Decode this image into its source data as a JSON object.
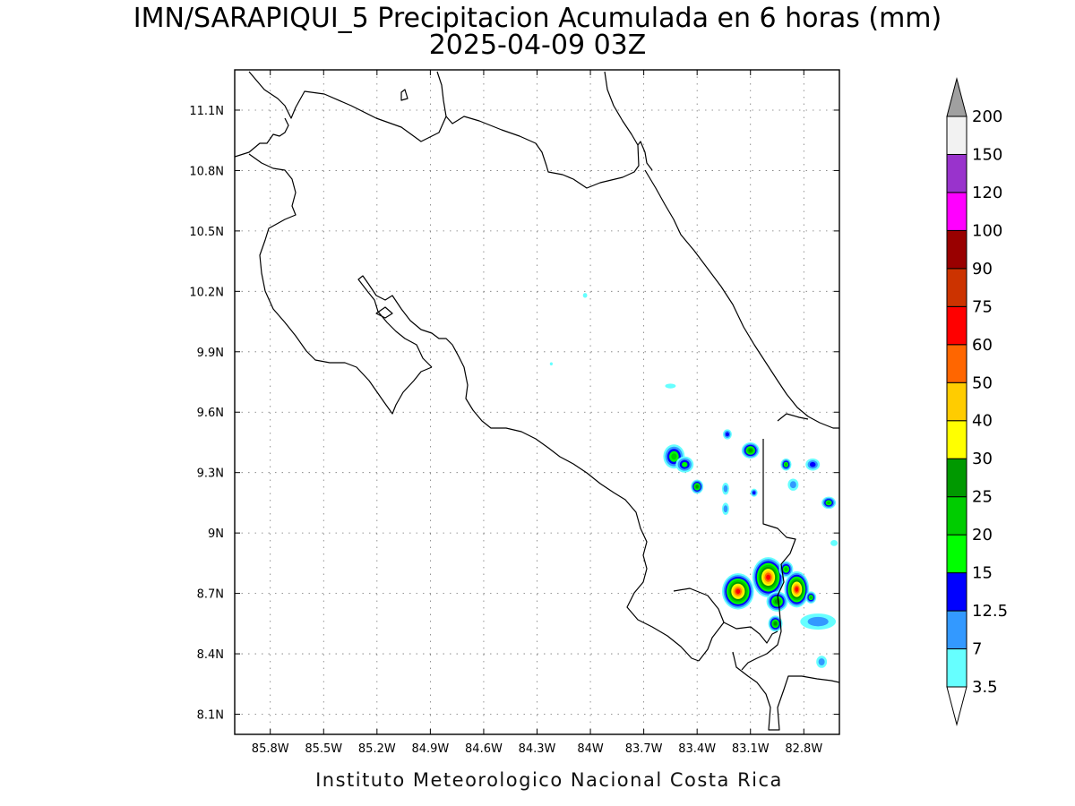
{
  "title": {
    "line1": "IMN/SARAPIQUI_5 Precipitacion Acumulada en 6 horas (mm)",
    "line2": "2025-04-09 03Z"
  },
  "footer": "Instituto Meteorologico Nacional Costa Rica",
  "axes": {
    "lon_range": [
      -86.0,
      -82.6
    ],
    "lat_range": [
      8.0,
      11.3
    ],
    "lon_ticks": [
      {
        "value": -85.8,
        "label": "85.8W"
      },
      {
        "value": -85.5,
        "label": "85.5W"
      },
      {
        "value": -85.2,
        "label": "85.2W"
      },
      {
        "value": -84.9,
        "label": "84.9W"
      },
      {
        "value": -84.6,
        "label": "84.6W"
      },
      {
        "value": -84.3,
        "label": "84.3W"
      },
      {
        "value": -84.0,
        "label": "84W"
      },
      {
        "value": -83.7,
        "label": "83.7W"
      },
      {
        "value": -83.4,
        "label": "83.4W"
      },
      {
        "value": -83.1,
        "label": "83.1W"
      },
      {
        "value": -82.8,
        "label": "82.8W"
      }
    ],
    "lat_ticks": [
      {
        "value": 11.1,
        "label": "11.1N"
      },
      {
        "value": 10.8,
        "label": "10.8N"
      },
      {
        "value": 10.5,
        "label": "10.5N"
      },
      {
        "value": 10.2,
        "label": "10.2N"
      },
      {
        "value": 9.9,
        "label": "9.9N"
      },
      {
        "value": 9.6,
        "label": "9.6N"
      },
      {
        "value": 9.3,
        "label": "9.3N"
      },
      {
        "value": 9.0,
        "label": "9N"
      },
      {
        "value": 8.7,
        "label": "8.7N"
      },
      {
        "value": 8.4,
        "label": "8.4N"
      },
      {
        "value": 8.1,
        "label": "8.1N"
      }
    ],
    "grid": true
  },
  "colorbar": {
    "labels": [
      "3.5",
      "7",
      "12.5",
      "15",
      "20",
      "25",
      "30",
      "40",
      "50",
      "60",
      "75",
      "90",
      "100",
      "120",
      "150",
      "200"
    ],
    "colors": [
      "#66ffff",
      "#3399ff",
      "#0000ff",
      "#00ff00",
      "#00cc00",
      "#009900",
      "#ffff00",
      "#ffcc00",
      "#ff6600",
      "#ff0000",
      "#cc3300",
      "#990000",
      "#ff00ff",
      "#9933cc",
      "#f2f2f2"
    ],
    "over_color": "#a0a0a0",
    "under_color": "#ffffff"
  },
  "precip_cells": [
    {
      "lon": -83.53,
      "lat": 9.38,
      "level": 4,
      "rx": 0.06,
      "ry": 0.06
    },
    {
      "lon": -83.47,
      "lat": 9.34,
      "level": 3,
      "rx": 0.05,
      "ry": 0.04
    },
    {
      "lon": -83.4,
      "lat": 9.23,
      "level": 5,
      "rx": 0.035,
      "ry": 0.035
    },
    {
      "lon": -83.23,
      "lat": 9.49,
      "level": 2,
      "rx": 0.025,
      "ry": 0.025
    },
    {
      "lon": -83.1,
      "lat": 9.41,
      "level": 5,
      "rx": 0.05,
      "ry": 0.04
    },
    {
      "lon": -83.24,
      "lat": 9.22,
      "level": 1,
      "rx": 0.02,
      "ry": 0.03
    },
    {
      "lon": -83.24,
      "lat": 9.12,
      "level": 1,
      "rx": 0.02,
      "ry": 0.03
    },
    {
      "lon": -83.08,
      "lat": 9.2,
      "level": 2,
      "rx": 0.02,
      "ry": 0.02
    },
    {
      "lon": -82.9,
      "lat": 9.34,
      "level": 4,
      "rx": 0.03,
      "ry": 0.03
    },
    {
      "lon": -82.75,
      "lat": 9.34,
      "level": 2,
      "rx": 0.04,
      "ry": 0.03
    },
    {
      "lon": -82.86,
      "lat": 9.24,
      "level": 1,
      "rx": 0.03,
      "ry": 0.03
    },
    {
      "lon": -82.66,
      "lat": 9.15,
      "level": 4,
      "rx": 0.04,
      "ry": 0.03
    },
    {
      "lon": -83.55,
      "lat": 9.73,
      "level": 0,
      "rx": 0.03,
      "ry": 0.012
    },
    {
      "lon": -84.03,
      "lat": 10.18,
      "level": 0,
      "rx": 0.012,
      "ry": 0.012
    },
    {
      "lon": -84.22,
      "lat": 9.84,
      "level": 0,
      "rx": 0.008,
      "ry": 0.008
    },
    {
      "lon": -83.17,
      "lat": 8.71,
      "level": 9,
      "rx": 0.09,
      "ry": 0.09
    },
    {
      "lon": -83.0,
      "lat": 8.78,
      "level": 9,
      "rx": 0.09,
      "ry": 0.1
    },
    {
      "lon": -82.84,
      "lat": 8.72,
      "level": 9,
      "rx": 0.07,
      "ry": 0.09
    },
    {
      "lon": -82.95,
      "lat": 8.66,
      "level": 5,
      "rx": 0.06,
      "ry": 0.05
    },
    {
      "lon": -82.96,
      "lat": 8.55,
      "level": 5,
      "rx": 0.04,
      "ry": 0.04
    },
    {
      "lon": -82.76,
      "lat": 8.68,
      "level": 4,
      "rx": 0.03,
      "ry": 0.03
    },
    {
      "lon": -82.9,
      "lat": 8.82,
      "level": 4,
      "rx": 0.04,
      "ry": 0.04
    },
    {
      "lon": -82.72,
      "lat": 8.56,
      "level": 1,
      "rx": 0.1,
      "ry": 0.04
    },
    {
      "lon": -82.7,
      "lat": 8.36,
      "level": 1,
      "rx": 0.03,
      "ry": 0.03
    },
    {
      "lon": -82.63,
      "lat": 8.95,
      "level": 0,
      "rx": 0.02,
      "ry": 0.015
    }
  ]
}
